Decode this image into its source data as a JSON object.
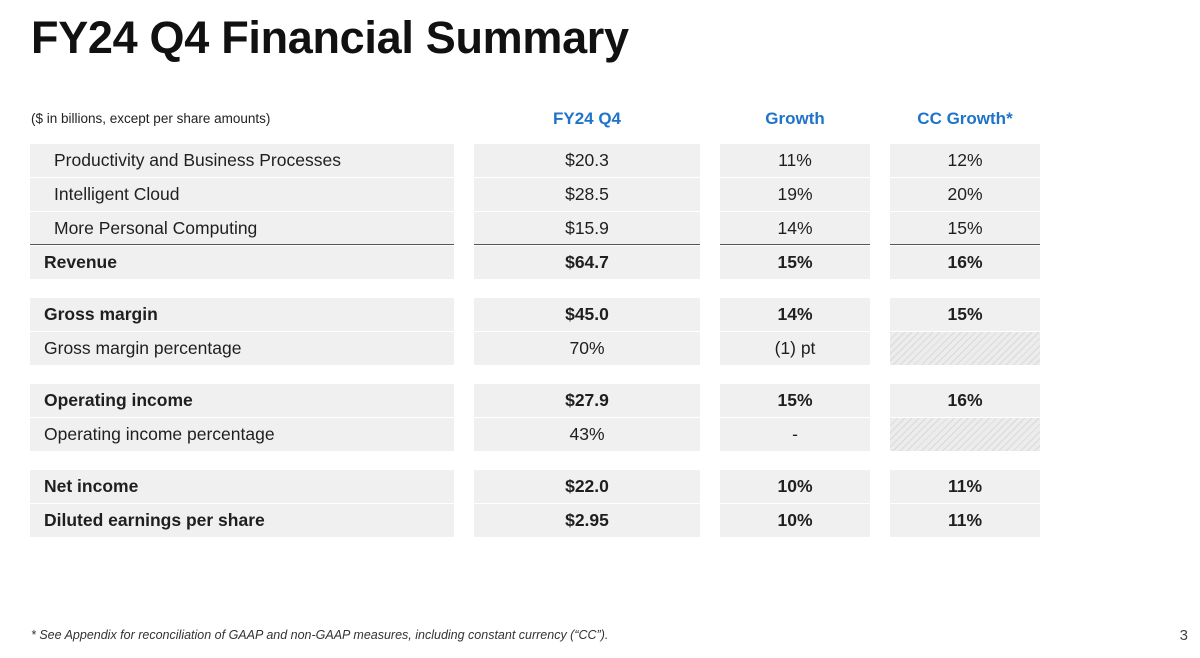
{
  "title": "FY24 Q4 Financial Summary",
  "header": {
    "note": "($ in billions, except per share amounts)",
    "col1": "FY24 Q4",
    "col2": "Growth",
    "col3": "CC Growth*"
  },
  "rows": [
    {
      "label": "Productivity and Business Processes",
      "q4": "$20.3",
      "growth": "11%",
      "cc": "12%",
      "style": "indent"
    },
    {
      "label": "Intelligent Cloud",
      "q4": "$28.5",
      "growth": "19%",
      "cc": "20%",
      "style": "indent"
    },
    {
      "label": "More Personal Computing",
      "q4": "$15.9",
      "growth": "14%",
      "cc": "15%",
      "style": "indent"
    },
    {
      "label": "Revenue",
      "q4": "$64.7",
      "growth": "15%",
      "cc": "16%",
      "style": "bold"
    },
    {
      "label": "Gross margin",
      "q4": "$45.0",
      "growth": "14%",
      "cc": "15%",
      "style": "bold"
    },
    {
      "label": "Gross margin percentage",
      "q4": "70%",
      "growth": "(1) pt",
      "cc": "",
      "style": "plain",
      "cc_hatched": true
    },
    {
      "label": "Operating income",
      "q4": "$27.9",
      "growth": "15%",
      "cc": "16%",
      "style": "bold"
    },
    {
      "label": "Operating income percentage",
      "q4": "43%",
      "growth": "-",
      "cc": "",
      "style": "plain",
      "cc_hatched": true
    },
    {
      "label": "Net income",
      "q4": "$22.0",
      "growth": "10%",
      "cc": "11%",
      "style": "bold"
    },
    {
      "label": "Diluted earnings per share",
      "q4": "$2.95",
      "growth": "10%",
      "cc": "11%",
      "style": "bold"
    }
  ],
  "footnote": "* See Appendix for reconciliation of GAAP and non-GAAP measures, including constant currency (“CC”).",
  "page_number": "3",
  "colors": {
    "header_accent": "#1f73c9",
    "cell_background": "#f0f0f0"
  }
}
